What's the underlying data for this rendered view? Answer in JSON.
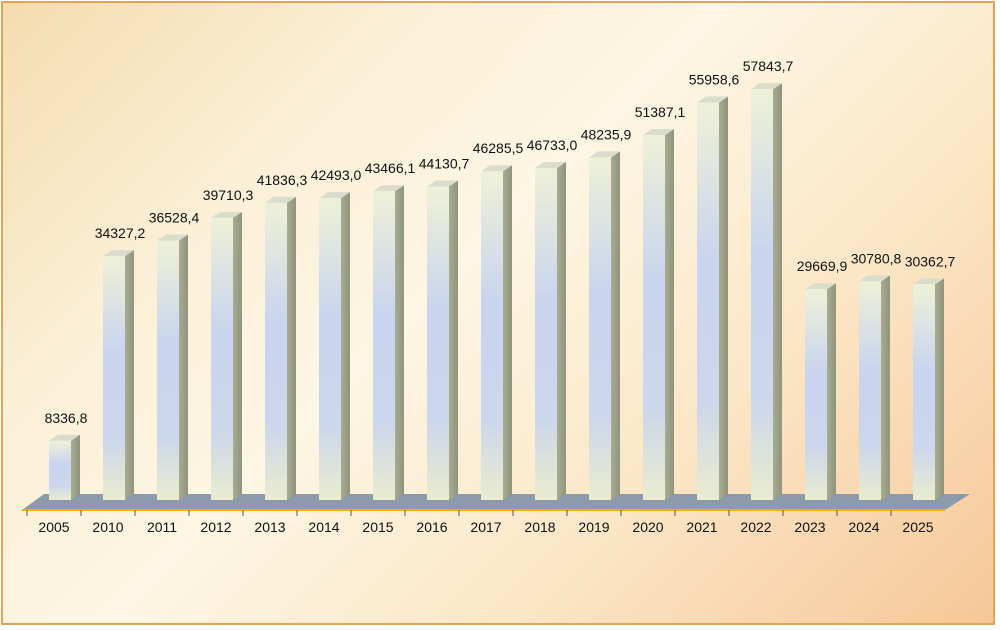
{
  "chart_data": {
    "type": "bar",
    "title": "",
    "xlabel": "",
    "ylabel": "",
    "categories": [
      "2005",
      "2010",
      "2011",
      "2012",
      "2013",
      "2014",
      "2015",
      "2016",
      "2017",
      "2018",
      "2019",
      "2020",
      "2021",
      "2022",
      "2023",
      "2024",
      "2025"
    ],
    "values": [
      8336.8,
      34327.2,
      36528.4,
      39710.3,
      41836.3,
      42493.0,
      43466.1,
      44130.7,
      46285.5,
      46733.0,
      48235.9,
      51387.1,
      55958.6,
      57843.7,
      29669.9,
      30780.8,
      30362.7
    ],
    "value_labels": [
      "8336,8",
      "34327,2",
      "36528,4",
      "39710,3",
      "41836,3",
      "42493,0",
      "43466,1",
      "44130,7",
      "46285,5",
      "46733,0",
      "48235,9",
      "51387,1",
      "55958,6",
      "57843,7",
      "29669,9",
      "30780,8",
      "30362,7"
    ],
    "ylim": [
      0,
      58000
    ],
    "grid": false,
    "legend": "none",
    "colors": {
      "bar_front_top": "#eef0d6",
      "bar_front_mid": "#c6d2ee",
      "bar_side": "#a4a88e",
      "bar_top": "#dadccc",
      "floor": "#8c9aac",
      "floor_edge": "#f0b400"
    }
  }
}
